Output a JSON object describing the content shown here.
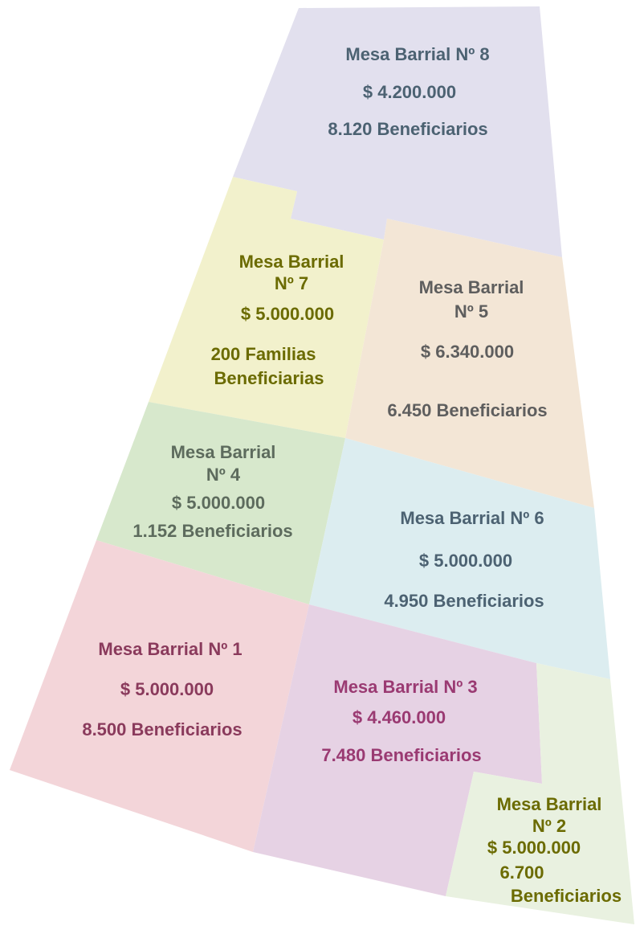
{
  "regions": [
    {
      "lines": [
        "Mesa Barrial Nº 8",
        "$ 4.200.000",
        "8.120 Beneficiarios"
      ]
    },
    {
      "lines": [
        "Mesa Barrial",
        "Nº 7",
        "$ 5.000.000",
        "200 Familias",
        "Beneficiarias"
      ]
    },
    {
      "lines": [
        "Mesa Barrial",
        "Nº 5",
        "$ 6.340.000",
        "6.450 Beneficiarios"
      ]
    },
    {
      "lines": [
        "Mesa Barrial",
        "Nº 4",
        "$ 5.000.000",
        "1.152 Beneficiarios"
      ]
    },
    {
      "lines": [
        "Mesa Barrial Nº 6",
        "$ 5.000.000",
        "4.950 Beneficiarios"
      ]
    },
    {
      "lines": [
        "Mesa Barrial Nº 1",
        "$ 5.000.000",
        "8.500 Beneficiarios"
      ]
    },
    {
      "lines": [
        "Mesa Barrial Nº 3",
        "$ 4.460.000",
        "7.480 Beneficiarios"
      ]
    },
    {
      "lines": [
        "Mesa Barrial",
        "Nº 2",
        "$ 5.000.000",
        "6.700",
        "Beneficiarios"
      ]
    }
  ]
}
